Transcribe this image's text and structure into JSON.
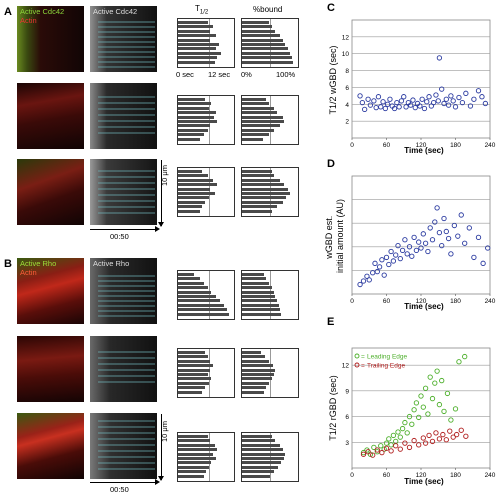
{
  "labels": {
    "A": "A",
    "B": "B",
    "C": "C",
    "D": "D",
    "E": "E",
    "cdc42_merge_top": "Active Cdc42",
    "cdc42_merge_bot": "Actin",
    "cdc42_gray": "Active Cdc42",
    "rho_merge_top": "Active Rho",
    "rho_merge_bot": "Actin",
    "rho_gray": "Active Rho",
    "thalf_header": "T",
    "thalf_sub": "1/2",
    "bound_header": "%bound",
    "axis_0sec": "0 sec",
    "axis_12sec": "12 sec",
    "axis_0pct": "0%",
    "axis_100pct": "100%",
    "scale_10um_a": "10 μm",
    "scale_10um_b": "10 μm",
    "time_a": "00:50",
    "time_b": "00:50"
  },
  "chart_data": [
    {
      "type": "scatter",
      "panel": "C",
      "xlabel": "Time (sec)",
      "ylabel": "T1/2 wGBD (sec)",
      "xlim": [
        0,
        240
      ],
      "ylim": [
        0,
        14
      ],
      "xticks": [
        0,
        60,
        120,
        180,
        240
      ],
      "yticks": [
        2,
        4,
        6,
        8,
        10,
        12
      ],
      "grid": true,
      "series": [
        {
          "color": "#2a3aa0",
          "points": [
            [
              14,
              5.0
            ],
            [
              18,
              4.2
            ],
            [
              22,
              3.4
            ],
            [
              28,
              4.6
            ],
            [
              32,
              3.9
            ],
            [
              38,
              4.4
            ],
            [
              42,
              3.6
            ],
            [
              46,
              4.9
            ],
            [
              50,
              3.7
            ],
            [
              54,
              4.3
            ],
            [
              58,
              3.5
            ],
            [
              62,
              4.0
            ],
            [
              66,
              4.6
            ],
            [
              70,
              3.8
            ],
            [
              74,
              3.5
            ],
            [
              78,
              4.2
            ],
            [
              82,
              3.7
            ],
            [
              86,
              4.4
            ],
            [
              90,
              4.9
            ],
            [
              94,
              3.7
            ],
            [
              98,
              4.2
            ],
            [
              102,
              3.9
            ],
            [
              106,
              4.5
            ],
            [
              110,
              3.6
            ],
            [
              114,
              4.1
            ],
            [
              118,
              3.8
            ],
            [
              122,
              4.6
            ],
            [
              126,
              3.5
            ],
            [
              130,
              4.3
            ],
            [
              134,
              4.9
            ],
            [
              138,
              3.8
            ],
            [
              142,
              4.2
            ],
            [
              146,
              5.1
            ],
            [
              150,
              4.4
            ],
            [
              152,
              9.5
            ],
            [
              156,
              5.8
            ],
            [
              160,
              4.1
            ],
            [
              164,
              4.6
            ],
            [
              168,
              3.9
            ],
            [
              172,
              5.0
            ],
            [
              176,
              4.4
            ],
            [
              180,
              3.7
            ],
            [
              186,
              4.8
            ],
            [
              192,
              4.2
            ],
            [
              198,
              5.3
            ],
            [
              206,
              3.8
            ],
            [
              212,
              4.6
            ],
            [
              220,
              5.6
            ],
            [
              226,
              4.9
            ],
            [
              232,
              4.1
            ]
          ]
        }
      ]
    },
    {
      "type": "scatter",
      "panel": "D",
      "xlabel": "Time (sec)",
      "ylabel": "wGBD est. initial amount (AU)",
      "xlim": [
        0,
        240
      ],
      "ylim": [
        0,
        10
      ],
      "xticks": [
        0,
        60,
        120,
        180,
        240
      ],
      "yticks": [],
      "grid": true,
      "series": [
        {
          "color": "#2a3aa0",
          "points": [
            [
              14,
              0.8
            ],
            [
              20,
              1.1
            ],
            [
              26,
              1.5
            ],
            [
              30,
              1.2
            ],
            [
              36,
              1.8
            ],
            [
              40,
              2.6
            ],
            [
              44,
              1.9
            ],
            [
              48,
              2.3
            ],
            [
              52,
              2.9
            ],
            [
              56,
              1.6
            ],
            [
              60,
              3.1
            ],
            [
              64,
              2.5
            ],
            [
              68,
              3.6
            ],
            [
              72,
              2.8
            ],
            [
              76,
              3.3
            ],
            [
              80,
              4.1
            ],
            [
              84,
              3.0
            ],
            [
              88,
              3.7
            ],
            [
              92,
              4.6
            ],
            [
              96,
              3.4
            ],
            [
              100,
              4.0
            ],
            [
              104,
              3.2
            ],
            [
              108,
              4.8
            ],
            [
              112,
              3.7
            ],
            [
              116,
              4.4
            ],
            [
              120,
              3.9
            ],
            [
              124,
              5.1
            ],
            [
              128,
              4.3
            ],
            [
              132,
              3.6
            ],
            [
              136,
              5.6
            ],
            [
              140,
              4.6
            ],
            [
              144,
              6.1
            ],
            [
              148,
              7.3
            ],
            [
              152,
              5.2
            ],
            [
              156,
              4.1
            ],
            [
              160,
              6.4
            ],
            [
              164,
              5.3
            ],
            [
              168,
              4.7
            ],
            [
              172,
              3.4
            ],
            [
              178,
              5.8
            ],
            [
              184,
              4.9
            ],
            [
              190,
              6.7
            ],
            [
              196,
              4.3
            ],
            [
              204,
              5.6
            ],
            [
              212,
              3.1
            ],
            [
              220,
              4.8
            ],
            [
              228,
              2.6
            ],
            [
              236,
              3.9
            ]
          ]
        }
      ]
    },
    {
      "type": "scatter",
      "panel": "E",
      "xlabel": "Time (sec)",
      "ylabel": "T1/2 rGBD (sec)",
      "xlim": [
        0,
        240
      ],
      "ylim": [
        0,
        14
      ],
      "xticks": [
        0,
        60,
        120,
        180,
        240
      ],
      "yticks": [
        3,
        6,
        9,
        12
      ],
      "grid": true,
      "legend": "top-left",
      "series": [
        {
          "name": "Leading Edge",
          "color": "#4caf2a",
          "points": [
            [
              20,
              1.8
            ],
            [
              26,
              2.1
            ],
            [
              32,
              1.6
            ],
            [
              38,
              2.4
            ],
            [
              44,
              1.9
            ],
            [
              50,
              2.6
            ],
            [
              56,
              2.2
            ],
            [
              60,
              2.9
            ],
            [
              64,
              3.4
            ],
            [
              68,
              2.7
            ],
            [
              72,
              3.8
            ],
            [
              76,
              3.1
            ],
            [
              80,
              4.2
            ],
            [
              84,
              3.6
            ],
            [
              88,
              4.6
            ],
            [
              92,
              5.3
            ],
            [
              96,
              4.1
            ],
            [
              100,
              6.0
            ],
            [
              104,
              5.1
            ],
            [
              108,
              6.8
            ],
            [
              112,
              7.6
            ],
            [
              116,
              5.9
            ],
            [
              120,
              8.4
            ],
            [
              124,
              7.1
            ],
            [
              128,
              9.3
            ],
            [
              132,
              6.3
            ],
            [
              136,
              10.6
            ],
            [
              140,
              8.1
            ],
            [
              144,
              9.9
            ],
            [
              148,
              11.3
            ],
            [
              152,
              7.4
            ],
            [
              156,
              10.2
            ],
            [
              160,
              6.6
            ],
            [
              166,
              8.7
            ],
            [
              172,
              5.6
            ],
            [
              180,
              6.9
            ],
            [
              186,
              12.4
            ],
            [
              196,
              13.0
            ]
          ]
        },
        {
          "name": "Trailing Edge",
          "color": "#b01c1c",
          "points": [
            [
              20,
              1.6
            ],
            [
              28,
              1.9
            ],
            [
              36,
              1.5
            ],
            [
              44,
              2.1
            ],
            [
              52,
              1.8
            ],
            [
              60,
              2.3
            ],
            [
              68,
              2.0
            ],
            [
              76,
              2.6
            ],
            [
              84,
              2.2
            ],
            [
              92,
              2.9
            ],
            [
              100,
              2.4
            ],
            [
              108,
              3.2
            ],
            [
              116,
              2.7
            ],
            [
              124,
              3.5
            ],
            [
              128,
              2.9
            ],
            [
              134,
              3.8
            ],
            [
              140,
              3.1
            ],
            [
              146,
              4.1
            ],
            [
              152,
              3.4
            ],
            [
              158,
              3.9
            ],
            [
              164,
              3.3
            ],
            [
              170,
              4.3
            ],
            [
              176,
              3.6
            ],
            [
              182,
              3.9
            ],
            [
              190,
              4.4
            ],
            [
              198,
              3.7
            ]
          ]
        }
      ]
    }
  ],
  "bar_panels": {
    "A1_thalf": [
      0.55,
      0.65,
      0.6,
      0.7,
      0.6,
      0.75,
      0.7,
      0.8,
      0.72,
      0.68
    ],
    "A1_bound": [
      0.5,
      0.55,
      0.62,
      0.7,
      0.75,
      0.8,
      0.85,
      0.88,
      0.92,
      0.95
    ],
    "A2_thalf": [
      0.5,
      0.62,
      0.58,
      0.7,
      0.66,
      0.72,
      0.6,
      0.55,
      0.48,
      0.4
    ],
    "A2_bound": [
      0.45,
      0.5,
      0.6,
      0.65,
      0.75,
      0.78,
      0.7,
      0.6,
      0.5,
      0.38
    ],
    "A3_thalf": [
      0.45,
      0.55,
      0.65,
      0.72,
      0.6,
      0.68,
      0.58,
      0.5,
      0.45,
      0.4
    ],
    "A3_bound": [
      0.55,
      0.6,
      0.7,
      0.78,
      0.85,
      0.88,
      0.82,
      0.75,
      0.65,
      0.55
    ],
    "B1_thalf": [
      0.3,
      0.4,
      0.48,
      0.55,
      0.62,
      0.7,
      0.78,
      0.85,
      0.9,
      0.95
    ],
    "B1_bound": [
      0.4,
      0.45,
      0.5,
      0.55,
      0.6,
      0.62,
      0.65,
      0.68,
      0.7,
      0.72
    ],
    "B2_thalf": [
      0.5,
      0.55,
      0.6,
      0.65,
      0.6,
      0.55,
      0.62,
      0.58,
      0.5,
      0.45
    ],
    "B2_bound": [
      0.35,
      0.42,
      0.5,
      0.58,
      0.62,
      0.6,
      0.55,
      0.5,
      0.45,
      0.4
    ],
    "B3_thalf": [
      0.55,
      0.6,
      0.68,
      0.72,
      0.65,
      0.7,
      0.62,
      0.58,
      0.52,
      0.48
    ],
    "B3_bound": [
      0.55,
      0.62,
      0.7,
      0.75,
      0.8,
      0.78,
      0.72,
      0.66,
      0.6,
      0.52
    ]
  }
}
